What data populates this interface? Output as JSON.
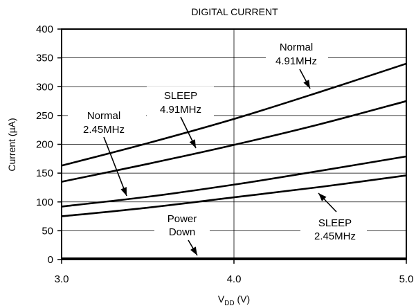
{
  "chart_data": {
    "type": "line",
    "title": "DIGITAL CURRENT",
    "xlabel": "V",
    "xlabel_sub": "DD",
    "xlabel_unit": " (V)",
    "ylabel": "Current (µA)",
    "xlim": [
      3.0,
      5.0
    ],
    "ylim": [
      0,
      400
    ],
    "x_ticks": [
      3.0,
      4.0,
      5.0
    ],
    "x_tick_labels": [
      "3.0",
      "4.0",
      "5.0"
    ],
    "y_ticks": [
      0,
      50,
      100,
      150,
      200,
      250,
      300,
      350,
      400
    ],
    "y_tick_labels": [
      "0",
      "50",
      "100",
      "150",
      "200",
      "250",
      "300",
      "350",
      "400"
    ],
    "grid": {
      "x": [
        4.0
      ],
      "y": [
        50,
        100,
        150,
        200,
        250,
        300,
        350
      ]
    },
    "series": [
      {
        "name": "Normal 4.91MHz",
        "x": [
          3.0,
          3.5,
          4.0,
          4.5,
          5.0
        ],
        "y": [
          163,
          202,
          244,
          291,
          340
        ]
      },
      {
        "name": "SLEEP 4.91MHz",
        "x": [
          3.0,
          3.5,
          4.0,
          4.5,
          5.0
        ],
        "y": [
          135,
          166,
          199,
          235,
          275
        ]
      },
      {
        "name": "Normal 2.45MHz",
        "x": [
          3.0,
          3.5,
          4.0,
          4.5,
          5.0
        ],
        "y": [
          92,
          109,
          130,
          154,
          179
        ]
      },
      {
        "name": "SLEEP 2.45MHz",
        "x": [
          3.0,
          3.5,
          4.0,
          4.5,
          5.0
        ],
        "y": [
          75,
          90,
          108,
          126,
          146
        ]
      },
      {
        "name": "Power Down",
        "x": [
          3.0,
          5.0
        ],
        "y": [
          2,
          2
        ]
      }
    ],
    "annotations": [
      {
        "lines": [
          "Normal",
          "4.91MHz"
        ]
      },
      {
        "lines": [
          "SLEEP",
          "4.91MHz"
        ]
      },
      {
        "lines": [
          "Normal",
          "2.45MHz"
        ]
      },
      {
        "lines": [
          "Power",
          "Down"
        ]
      },
      {
        "lines": [
          "SLEEP",
          "2.45MHz"
        ]
      }
    ]
  }
}
